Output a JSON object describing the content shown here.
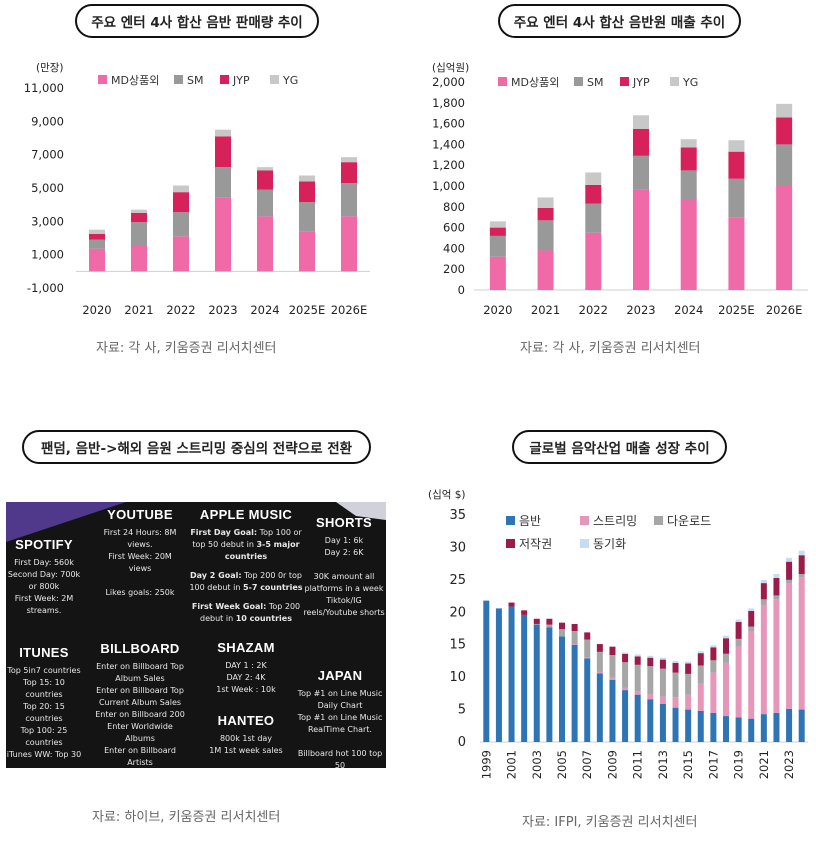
{
  "titles": {
    "top_left": "주요 엔터 4사 합산 음반 판매량 추이",
    "top_right": "주요 엔터 4사 합산 음반원 매출 추이",
    "bottom_left": "팬덤, 음반->해외 음원 스트리밍 중심의 전략으로 전환",
    "bottom_right": "글로벌 음악산업 매출 성장 추이"
  },
  "sources": {
    "top_left": "자료: 각 사, 키움증권 리서치센터",
    "top_right": "자료: 각 사, 키움증권 리서치센터",
    "bottom_left": "자료: 하이브, 키움증권 리서치센터",
    "bottom_right": "자료: IFPI, 키움증권 리서치센터"
  },
  "chart_data": [
    {
      "type": "bar",
      "stacked": true,
      "title": "주요 엔터 4사 합산 음반 판매량 추이",
      "unit_label": "(만장)",
      "categories": [
        "2020",
        "2021",
        "2022",
        "2023",
        "2024",
        "2025E",
        "2026E"
      ],
      "series": [
        {
          "name": "MD상품외",
          "color": "#f06aa8",
          "values": [
            1350,
            1550,
            2100,
            4450,
            3300,
            2400,
            3300
          ]
        },
        {
          "name": "SM",
          "color": "#999999",
          "values": [
            550,
            1400,
            1450,
            1800,
            1600,
            1750,
            2000
          ]
        },
        {
          "name": "JYP",
          "color": "#d6215b",
          "values": [
            350,
            550,
            1200,
            1850,
            1150,
            1250,
            1250
          ]
        },
        {
          "name": "YG",
          "color": "#c8c8c8",
          "values": [
            250,
            200,
            400,
            400,
            200,
            350,
            300
          ]
        }
      ],
      "yticks": [
        -1000,
        1000,
        3000,
        5000,
        7000,
        9000,
        11000
      ],
      "ytick_labels": [
        "-1,000",
        "1,000",
        "3,000",
        "5,000",
        "7,000",
        "9,000",
        "11,000"
      ],
      "ylim": [
        -1000,
        11000
      ],
      "legend": "top"
    },
    {
      "type": "bar",
      "stacked": true,
      "title": "주요 엔터 4사 합산 음반원 매출 추이",
      "unit_label": "(십억원)",
      "categories": [
        "2020",
        "2021",
        "2022",
        "2023",
        "2024",
        "2025E",
        "2026E"
      ],
      "series": [
        {
          "name": "MD상품외",
          "color": "#f06aa8",
          "values": [
            320,
            380,
            550,
            970,
            870,
            700,
            1000
          ]
        },
        {
          "name": "SM",
          "color": "#999999",
          "values": [
            200,
            290,
            280,
            320,
            280,
            370,
            400
          ]
        },
        {
          "name": "JYP",
          "color": "#d6215b",
          "values": [
            80,
            120,
            180,
            260,
            220,
            260,
            260
          ]
        },
        {
          "name": "YG",
          "color": "#c8c8c8",
          "values": [
            60,
            100,
            120,
            130,
            80,
            110,
            130
          ]
        }
      ],
      "yticks": [
        0,
        200,
        400,
        600,
        800,
        1000,
        1200,
        1400,
        1600,
        1800,
        2000
      ],
      "ytick_labels": [
        "0",
        "200",
        "400",
        "600",
        "800",
        "1,000",
        "1,200",
        "1,400",
        "1,600",
        "1,800",
        "2,000"
      ],
      "ylim": [
        0,
        2000
      ],
      "legend": "top"
    },
    {
      "type": "bar",
      "stacked": true,
      "title": "글로벌 음악산업 매출 성장 추이",
      "unit_label": "(십억 $)",
      "categories": [
        "1999",
        "2000",
        "2001",
        "2002",
        "2003",
        "2004",
        "2005",
        "2006",
        "2007",
        "2008",
        "2009",
        "2010",
        "2011",
        "2012",
        "2013",
        "2014",
        "2015",
        "2016",
        "2017",
        "2018",
        "2019",
        "2020",
        "2021",
        "2022",
        "2023",
        "2024"
      ],
      "xtick_labels": [
        "1999",
        "2001",
        "2003",
        "2005",
        "2007",
        "2009",
        "2011",
        "2013",
        "2015",
        "2017",
        "2019",
        "2021",
        "2023"
      ],
      "series": [
        {
          "name": "음반",
          "color": "#2e75b6",
          "values": [
            21.8,
            20.6,
            20.9,
            19.6,
            18.1,
            17.7,
            16.3,
            15.0,
            12.9,
            10.6,
            9.6,
            8.0,
            7.3,
            6.6,
            5.9,
            5.3,
            5.0,
            4.8,
            4.5,
            4.0,
            3.8,
            3.6,
            4.3,
            4.5,
            5.1,
            5.0
          ]
        },
        {
          "name": "스트리밍",
          "color": "#e696b8",
          "values": [
            0,
            0,
            0,
            0,
            0,
            0,
            0,
            0.1,
            0.1,
            0.2,
            0.3,
            0.4,
            0.5,
            0.8,
            1.1,
            1.6,
            2.3,
            4.3,
            6.2,
            8.2,
            11.0,
            13.4,
            16.9,
            17.5,
            19.3,
            20.4
          ]
        },
        {
          "name": "다운로드",
          "color": "#a6a6a6",
          "values": [
            0,
            0,
            0,
            0,
            0.1,
            0.4,
            1.1,
            2.0,
            2.8,
            3.1,
            3.5,
            3.9,
            4.1,
            4.3,
            4.3,
            3.8,
            3.2,
            2.7,
            1.9,
            1.4,
            1.1,
            0.8,
            0.8,
            0.6,
            0.6,
            0.5
          ]
        },
        {
          "name": "저작권",
          "color": "#9c1b4a",
          "values": [
            0,
            0,
            0.6,
            0.7,
            0.8,
            0.9,
            1.0,
            1.1,
            1.1,
            1.2,
            1.3,
            1.3,
            1.3,
            1.3,
            1.4,
            1.5,
            1.6,
            1.9,
            2.0,
            2.4,
            2.6,
            2.4,
            2.5,
            2.7,
            2.8,
            2.9
          ]
        },
        {
          "name": "동기화",
          "color": "#c6dcf2",
          "values": [
            0,
            0,
            0,
            0,
            0,
            0,
            0,
            0,
            0,
            0,
            0,
            0.2,
            0.3,
            0.3,
            0.3,
            0.3,
            0.3,
            0.3,
            0.3,
            0.4,
            0.4,
            0.4,
            0.5,
            0.6,
            0.6,
            0.7
          ]
        }
      ],
      "yticks": [
        0,
        5,
        10,
        15,
        20,
        25,
        30,
        35
      ],
      "ytick_labels": [
        "0",
        "5",
        "10",
        "15",
        "20",
        "25",
        "30",
        "35"
      ],
      "ylim": [
        0,
        35
      ],
      "legend": "top-left"
    }
  ],
  "poster": {
    "spotify": {
      "title": "SPOTIFY",
      "text": "First Day: 560k\nSecond Day: 700k or 800k\nFirst Week: 2M streams."
    },
    "itunes": {
      "title": "ITUNES",
      "text": "Top 5in7 countries\nTop 15: 10 countries\nTop 20: 15 countries\nTop 100: 25 countries\niTunes WW: Top 30"
    },
    "youtube": {
      "title": "YOUTUBE",
      "text": "First 24 Hours: 8M views.\nFirst Week: 20M views\n\nLikes goals: 250k"
    },
    "billboard": {
      "title": "BILLBOARD",
      "text": "Enter on Billboard Top Album Sales\nEnter on Billboard Top Current Album Sales\nEnter on Billboard 200\nEnter Worldwide Albums\nEnter on Billboard Artists"
    },
    "apple_music": {
      "title": "APPLE MUSIC",
      "goal1_label": "First Day Goal:",
      "goal1_text": " Top 100 or top 50 debut in ",
      "goal1_bold": "3-5 major countries",
      "goal2_label": "Day 2 Goal:",
      "goal2_text": " Top 200 0r top 100 debut in ",
      "goal2_bold": "5-7 countries",
      "goal3_label": "First Week Goal:",
      "goal3_text": " Top 200 debut in ",
      "goal3_bold": "10 countries"
    },
    "shazam": {
      "title": "SHAZAM",
      "text": "DAY 1 : 2K\nDAY 2: 4K\n1st Week : 10k"
    },
    "hanteo": {
      "title": "HANTEO",
      "text": "800k 1st day\n1M 1st week sales"
    },
    "shorts": {
      "title": "SHORTS",
      "text": "Day 1: 6k\nDay 2: 6K\n\n30K amount all platforms in a week Tiktok/IG reels/Youtube shorts"
    },
    "japan": {
      "title": "JAPAN",
      "text": "Top #1 on Line Music Daily Chart\nTop #1 on Line Music RealTime Chart.\n\nBillboard hot 100 top 50"
    }
  }
}
